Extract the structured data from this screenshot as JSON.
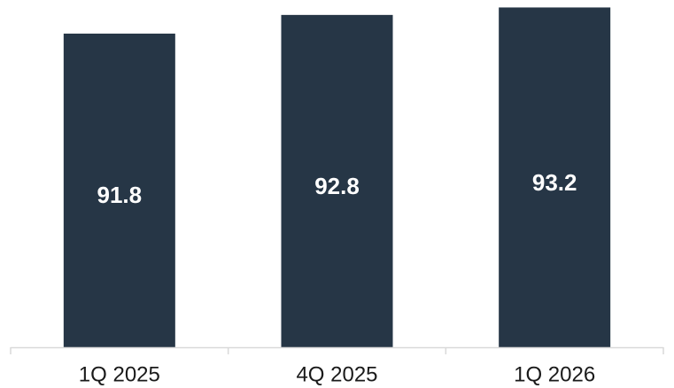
{
  "chart_data": {
    "type": "bar",
    "title": "",
    "xlabel": "",
    "ylabel": "",
    "categories": [
      "1Q 2025",
      "4Q 2025",
      "1Q 2026"
    ],
    "values": [
      91.8,
      92.8,
      93.2
    ],
    "data_labels": [
      "91.8",
      "92.8",
      "93.2"
    ],
    "ylim": [
      75,
      93.6
    ],
    "grid": false,
    "legend": "none",
    "colors": {
      "bar": "#263646",
      "bar_label": "#ffffff",
      "axis": "#d9d9d9",
      "tick_label": "#1a1a1a"
    }
  }
}
